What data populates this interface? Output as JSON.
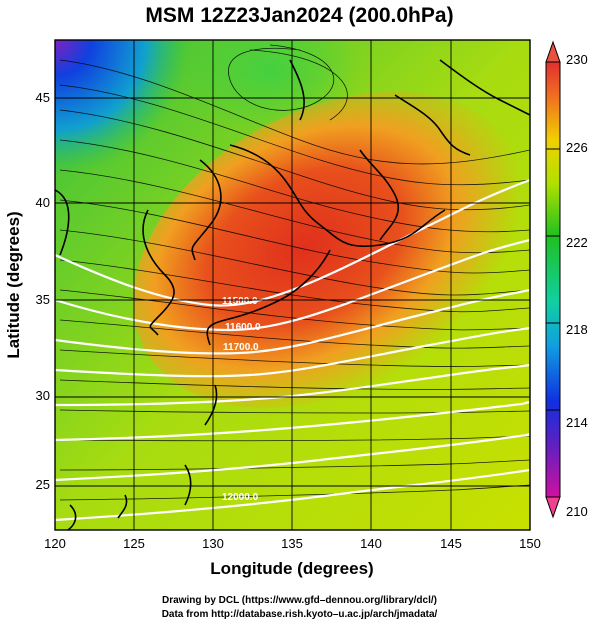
{
  "title": "MSM 12Z23Jan2024 (200.0hPa)",
  "map": {
    "xlabel": "Longitude (degrees)",
    "ylabel": "Latitude (degrees)",
    "lon_range": [
      120,
      150
    ],
    "lat_range": [
      22.4,
      47.6
    ],
    "x_ticks": [
      "120",
      "125",
      "130",
      "135",
      "140",
      "145",
      "150"
    ],
    "y_ticks": [
      "25",
      "30",
      "35",
      "40",
      "45"
    ],
    "colorbar": {
      "min": 210,
      "max": 230,
      "tick_labels": [
        "210",
        "214",
        "218",
        "222",
        "226",
        "230"
      ]
    },
    "contour_labels": [
      "11500.0",
      "11600.0",
      "11700.0",
      "12000.0"
    ],
    "colors": {
      "warm_core": "#e53a20",
      "mid": "#c8e000",
      "cool": "#22cc22",
      "cold": "#1040e0",
      "height_contour": "#ffffff",
      "coast": "#000000"
    }
  },
  "credits": {
    "line1": "Drawing by DCL (https://www.gfd–dennou.org/library/dcl/)",
    "line2": "Data from http://database.rish.kyoto–u.ac.jp/arch/jmadata/"
  }
}
